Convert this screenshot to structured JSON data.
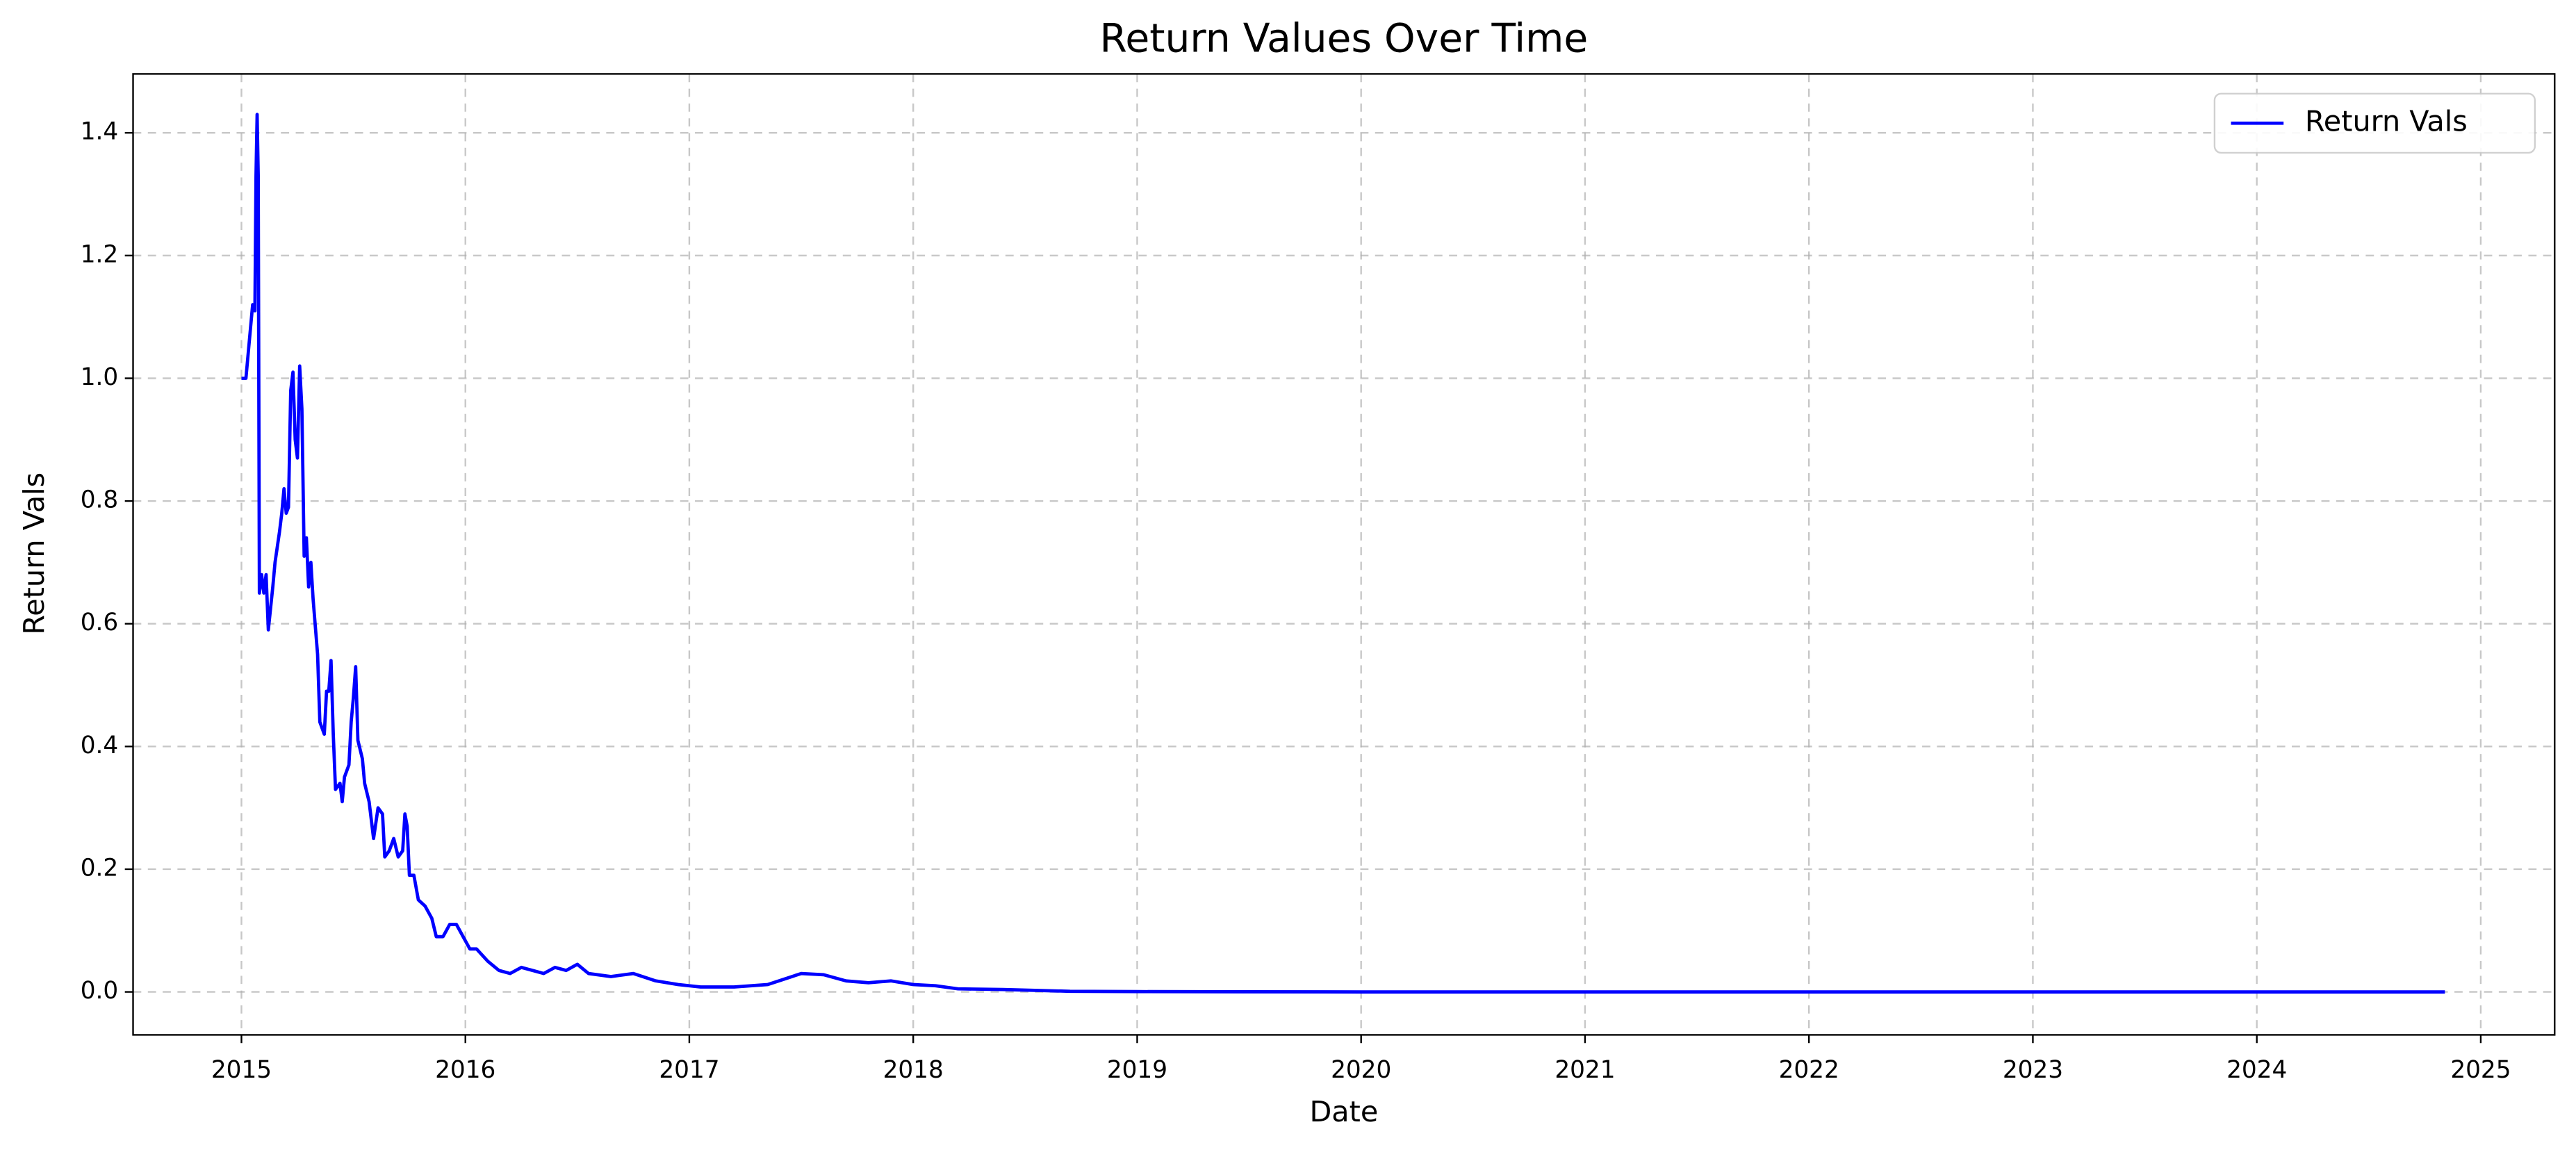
{
  "chart_data": {
    "type": "line",
    "title": "Return Values Over Time",
    "x_label": "Date",
    "y_label": "Return Vals",
    "x": [
      2015.0,
      2015.02,
      2015.04,
      2015.05,
      2015.06,
      2015.065,
      2015.07,
      2015.075,
      2015.08,
      2015.09,
      2015.1,
      2015.11,
      2015.12,
      2015.14,
      2015.15,
      2015.17,
      2015.18,
      2015.19,
      2015.2,
      2015.21,
      2015.22,
      2015.23,
      2015.24,
      2015.25,
      2015.26,
      2015.27,
      2015.28,
      2015.29,
      2015.3,
      2015.31,
      2015.32,
      2015.34,
      2015.35,
      2015.37,
      2015.38,
      2015.39,
      2015.4,
      2015.41,
      2015.42,
      2015.44,
      2015.45,
      2015.46,
      2015.48,
      2015.49,
      2015.5,
      2015.51,
      2015.52,
      2015.54,
      2015.55,
      2015.57,
      2015.59,
      2015.61,
      2015.63,
      2015.64,
      2015.66,
      2015.68,
      2015.7,
      2015.72,
      2015.73,
      2015.74,
      2015.75,
      2015.77,
      2015.79,
      2015.82,
      2015.85,
      2015.87,
      2015.9,
      2015.93,
      2015.96,
      2015.99,
      2016.02,
      2016.05,
      2016.1,
      2016.15,
      2016.2,
      2016.25,
      2016.3,
      2016.35,
      2016.4,
      2016.45,
      2016.5,
      2016.55,
      2016.65,
      2016.75,
      2016.85,
      2016.95,
      2017.05,
      2017.2,
      2017.35,
      2017.5,
      2017.6,
      2017.7,
      2017.8,
      2017.9,
      2018.0,
      2018.1,
      2018.2,
      2018.4,
      2018.5,
      2018.7,
      2019.0,
      2020.0,
      2022.0,
      2024.84
    ],
    "series": [
      {
        "name": "Return Vals",
        "color": "#0000ff",
        "values": [
          1.0,
          1.0,
          1.08,
          1.12,
          1.11,
          1.33,
          1.43,
          1.33,
          0.65,
          0.68,
          0.65,
          0.68,
          0.59,
          0.66,
          0.7,
          0.75,
          0.78,
          0.82,
          0.78,
          0.79,
          0.98,
          1.01,
          0.9,
          0.87,
          1.02,
          0.95,
          0.71,
          0.74,
          0.66,
          0.7,
          0.64,
          0.55,
          0.44,
          0.42,
          0.49,
          0.49,
          0.54,
          0.42,
          0.33,
          0.34,
          0.31,
          0.35,
          0.37,
          0.44,
          0.48,
          0.53,
          0.41,
          0.38,
          0.34,
          0.31,
          0.25,
          0.3,
          0.29,
          0.22,
          0.23,
          0.25,
          0.22,
          0.23,
          0.29,
          0.27,
          0.19,
          0.19,
          0.15,
          0.14,
          0.12,
          0.09,
          0.09,
          0.11,
          0.11,
          0.09,
          0.07,
          0.07,
          0.05,
          0.035,
          0.03,
          0.04,
          0.035,
          0.03,
          0.04,
          0.035,
          0.045,
          0.03,
          0.025,
          0.03,
          0.018,
          0.012,
          0.008,
          0.008,
          0.012,
          0.03,
          0.028,
          0.018,
          0.015,
          0.018,
          0.012,
          0.01,
          0.005,
          0.004,
          0.003,
          0.001,
          0.0005,
          0,
          0,
          0
        ]
      }
    ],
    "xlim": [
      2014.516,
      2025.33
    ],
    "ylim": [
      -0.07,
      1.496
    ],
    "xticks": [
      2015,
      2016,
      2017,
      2018,
      2019,
      2020,
      2021,
      2022,
      2023,
      2024,
      2025
    ],
    "yticks": [
      {
        "value": 0,
        "label": "0.0"
      },
      {
        "value": 0.2,
        "label": "0.2"
      },
      {
        "value": 0.4,
        "label": "0.4"
      },
      {
        "value": 0.6,
        "label": "0.6"
      },
      {
        "value": 0.8,
        "label": "0.8"
      },
      {
        "value": 1.0,
        "label": "1.0"
      },
      {
        "value": 1.2,
        "label": "1.2"
      },
      {
        "value": 1.4,
        "label": "1.4"
      }
    ],
    "grid": true,
    "legend": "upper right"
  }
}
